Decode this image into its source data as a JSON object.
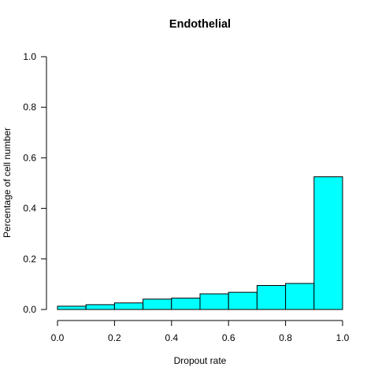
{
  "chart_data": {
    "type": "bar",
    "title": "Endothelial",
    "xlabel": "Dropout rate",
    "ylabel": "Percentage of cell number",
    "bins": [
      {
        "start": 0.0,
        "end": 0.1,
        "value": 0.013
      },
      {
        "start": 0.1,
        "end": 0.2,
        "value": 0.019
      },
      {
        "start": 0.2,
        "end": 0.3,
        "value": 0.026
      },
      {
        "start": 0.3,
        "end": 0.4,
        "value": 0.041
      },
      {
        "start": 0.4,
        "end": 0.5,
        "value": 0.045
      },
      {
        "start": 0.5,
        "end": 0.6,
        "value": 0.062
      },
      {
        "start": 0.6,
        "end": 0.7,
        "value": 0.068
      },
      {
        "start": 0.7,
        "end": 0.8,
        "value": 0.095
      },
      {
        "start": 0.8,
        "end": 0.9,
        "value": 0.103
      },
      {
        "start": 0.9,
        "end": 1.0,
        "value": 0.525
      }
    ],
    "xlim": [
      0,
      1
    ],
    "ylim": [
      0,
      1
    ],
    "x_ticks": [
      "0.0",
      "0.2",
      "0.4",
      "0.6",
      "0.8",
      "1.0"
    ],
    "y_ticks": [
      "0.0",
      "0.2",
      "0.4",
      "0.6",
      "0.8",
      "1.0"
    ],
    "bar_color": "#00FFFF",
    "bar_border_color": "#000000",
    "grid": false,
    "legend": "none"
  }
}
